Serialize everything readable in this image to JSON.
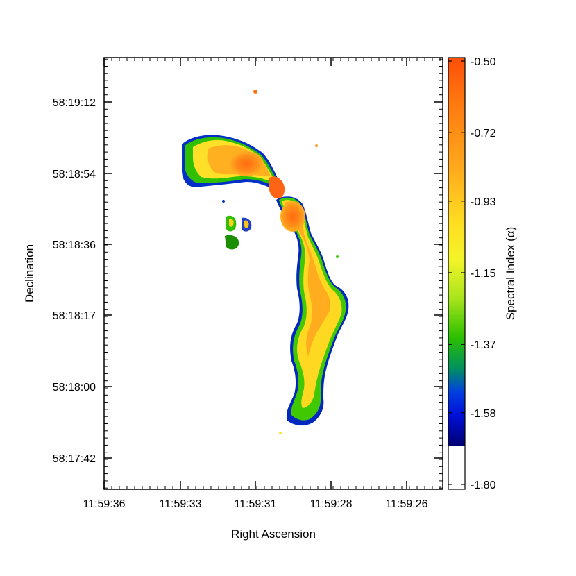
{
  "chart_data": {
    "type": "heatmap",
    "title": "",
    "xlabel": "Right Ascension",
    "ylabel": "Declination",
    "x_ticks": [
      "11:59:36",
      "11:59:33",
      "11:59:31",
      "11:59:28",
      "11:59:26"
    ],
    "y_ticks": [
      "58:19:12",
      "58:18:54",
      "58:18:36",
      "58:18:17",
      "58:18:00",
      "58:17:42"
    ],
    "colorbar": {
      "label": "Spectral Index (α)",
      "range": [
        -1.8,
        -0.5
      ],
      "tick_labels": [
        "-0.50",
        "-0.72",
        "-0.93",
        "-1.15",
        "-1.37",
        "-1.58",
        "-1.80"
      ],
      "tick_values": [
        -0.5,
        -0.72,
        -0.93,
        -1.15,
        -1.37,
        -1.58,
        -1.8
      ],
      "below_range_color": "#ffffff",
      "colors_top_to_bottom": [
        "#ff5a0a",
        "#ff6a0a",
        "#ff7a10",
        "#ff8c14",
        "#ffa018",
        "#ffb41c",
        "#ffc81e",
        "#ffdc22",
        "#fff02a",
        "#e0f028",
        "#b8e820",
        "#8ce010",
        "#4ccd00",
        "#1ab000",
        "#008c60",
        "#0050c8",
        "#0014ff",
        "#0000b4",
        "#000060"
      ]
    },
    "grid": false,
    "legend": "colorbar-right"
  }
}
